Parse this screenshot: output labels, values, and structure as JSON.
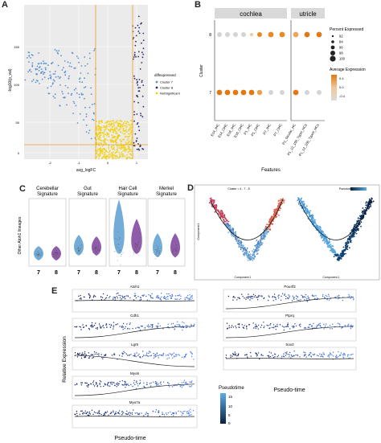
{
  "panels": {
    "A": "A",
    "B": "B",
    "C": "C",
    "D": "D",
    "E": "E"
  },
  "panelA": {
    "xlabel": "avg_logFC",
    "ylabel": "-log10(p_val)",
    "yticks": [
      "150",
      "100",
      "50",
      "0"
    ],
    "xticks": [
      "-2",
      "-1",
      "0",
      "1"
    ],
    "legend_title": "diffexpressed",
    "legend": [
      {
        "label": "Cluster 7",
        "color": "#5a8fd0"
      },
      {
        "label": "Cluster 8",
        "color": "#2b2b6e"
      },
      {
        "label": "NotSignificant",
        "color": "#f2d21b"
      }
    ],
    "threshold_color": "#e8a020"
  },
  "panelB": {
    "group_left": "cochlea",
    "group_right": "utricle",
    "ylabel": "Cluster",
    "xlabel": "Features",
    "clusters": [
      "8",
      "7"
    ],
    "features": [
      "E14_IHC",
      "E14_OHC",
      "E16_IHC",
      "E16_OHC",
      "P1_IHC",
      "P1_OHC",
      "P7_IHC",
      "P7_OHC",
      "P1_Striolar_HC",
      "P1_12_100_TypeI_HCs",
      "P1_12_100_TypeII_HCs"
    ],
    "size_legend_title": "Percent Expressed",
    "size_legend": [
      "92",
      "94",
      "96",
      "98",
      "100"
    ],
    "color_legend_title": "Average Expression",
    "color_legend": [
      "0.4",
      "0.0",
      "-0.4"
    ]
  },
  "panelC": {
    "ylabel": "Other Atoh1 lineages",
    "signatures": [
      "Cerebellar Signature",
      "Gut Signature",
      "Hair Cell Signature",
      "Merkel Signature"
    ],
    "groups": [
      "7",
      "8"
    ]
  },
  "panelD": {
    "title": "Cluster = 4 - 7 - 8",
    "legend_title": "Pseudotime",
    "xlabel_left": "Component 1",
    "xlabel_right": "Component 1",
    "ylabel": "Component 2"
  },
  "panelE": {
    "ylabel": "Relative Expression",
    "xlabel_left": "Pseudo-time",
    "xlabel_right": "Pseudo-time",
    "genes_left": [
      "Atoh1",
      "Cdh1",
      "Lgr5",
      "Myo6",
      "Myo7a"
    ],
    "genes_right": [
      "Pou4f3",
      "Ptprq",
      "Sox2"
    ],
    "legend_title": "Pseudotime",
    "legend_ticks": [
      "15",
      "10",
      "5",
      "0"
    ]
  }
}
